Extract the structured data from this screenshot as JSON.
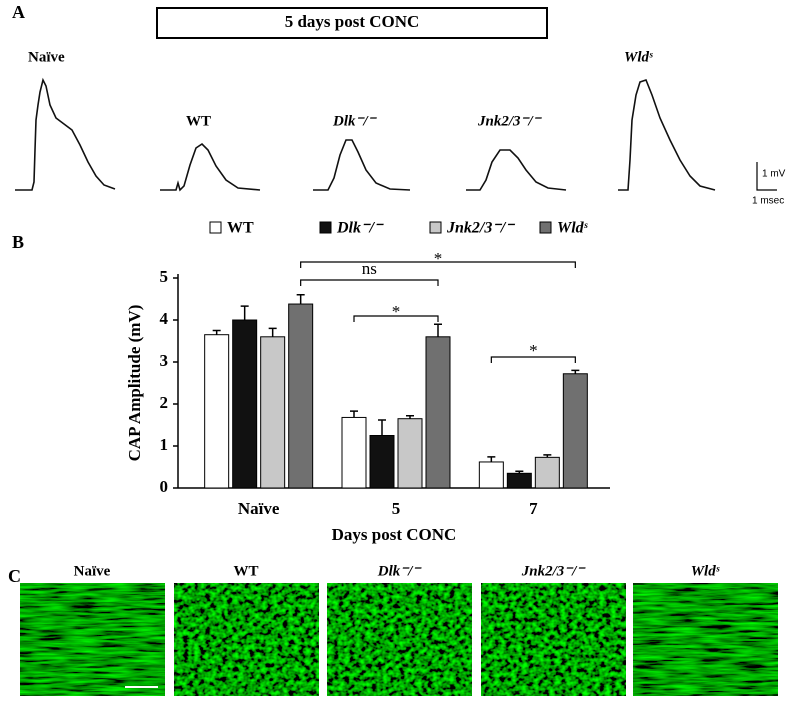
{
  "panel_a": {
    "label": "A",
    "banner": "5 days post CONC",
    "traces": [
      "Naïve",
      "WT",
      "Dlk⁻/⁻",
      "Jnk2/3⁻/⁻",
      "Wldˢ"
    ],
    "scale_y": "1 mV",
    "scale_x": "1 msec"
  },
  "panel_b_label": "B",
  "chart_data": {
    "type": "bar",
    "ylabel": "CAP Amplitude (mV)",
    "xlabel": "Days post CONC",
    "categories": [
      "Naïve",
      "5",
      "7"
    ],
    "series": [
      {
        "name": "WT",
        "color": "#ffffff",
        "values": [
          3.65,
          1.68,
          0.62
        ],
        "errors": [
          0.1,
          0.15,
          0.12
        ]
      },
      {
        "name": "Dlk⁻/⁻",
        "color": "#111111",
        "values": [
          4.0,
          1.25,
          0.35
        ],
        "errors": [
          0.33,
          0.37,
          0.05
        ]
      },
      {
        "name": "Jnk2/3⁻/⁻",
        "color": "#c8c8c8",
        "values": [
          3.6,
          1.65,
          0.73
        ],
        "errors": [
          0.2,
          0.07,
          0.06
        ]
      },
      {
        "name": "Wldˢ",
        "color": "#707070",
        "values": [
          4.38,
          3.6,
          2.72
        ],
        "errors": [
          0.22,
          0.3,
          0.08
        ]
      }
    ],
    "ylim": [
      0,
      5
    ],
    "yticks": [
      0,
      1,
      2,
      3,
      4,
      5
    ],
    "annotations": [
      "ns",
      "*",
      "*",
      "*"
    ]
  },
  "panel_c": {
    "label": "C",
    "images": [
      "Naïve",
      "WT",
      "Dlk⁻/⁻",
      "Jnk2/3⁻/⁻",
      "Wldˢ"
    ]
  }
}
